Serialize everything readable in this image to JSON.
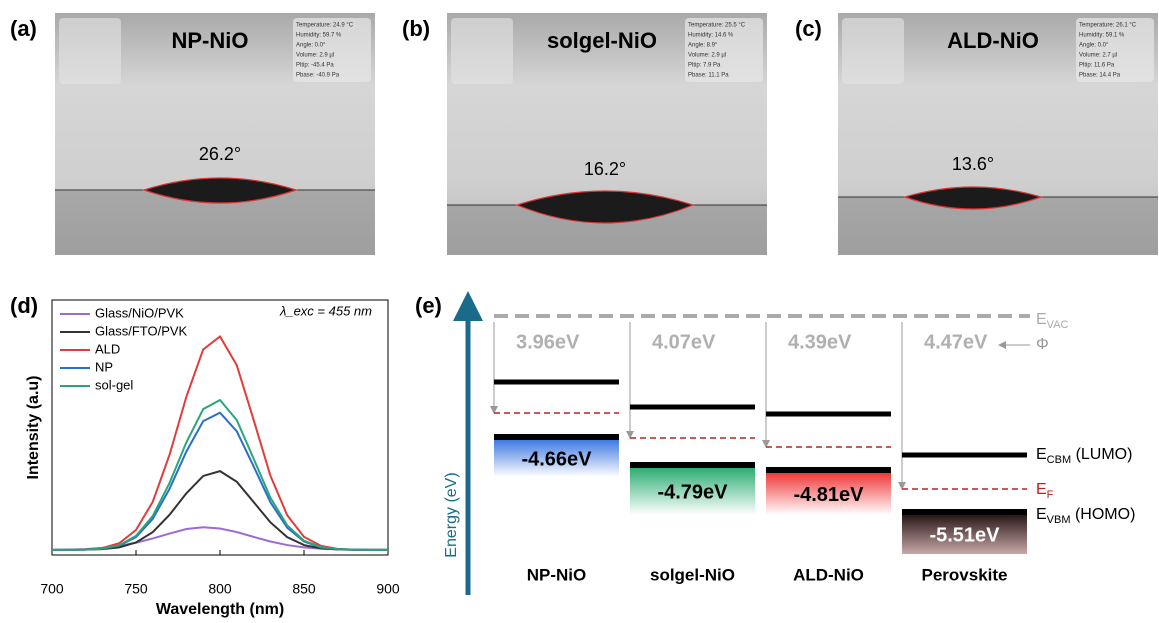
{
  "panels": [
    {
      "label": "(a)",
      "title": "NP-NiO",
      "angle": "26.2°",
      "info": [
        "Temperature: 24.9 °C",
        "Humidity: 59.7 %",
        "Angle: 0.0°",
        "Volume: 2.9 µl",
        "Pltip: -45.4 Pa",
        "Pbase: -40.9 Pa"
      ]
    },
    {
      "label": "(b)",
      "title": "solgel-NiO",
      "angle": "16.2°",
      "info": [
        "Temperature: 25.5 °C",
        "Humidity: 14.6 %",
        "Angle: 8.9°",
        "Volume: 2.9 µl",
        "Pltip: 7.9 Pa",
        "Pbase: 11.1 Pa"
      ]
    },
    {
      "label": "(c)",
      "title": "ALD-NiO",
      "angle": "13.6°",
      "info": [
        "Temperature: 26.1 °C",
        "Humidity: 59.1 %",
        "Angle: 0.0°",
        "Volume: 2.7 µl",
        "Pltip: 11.6 Pa",
        "Pbase: 14.4 Pa"
      ]
    }
  ],
  "chart_data": {
    "type": "line",
    "label": "(d)",
    "annotation": "λ_exc = 455 nm",
    "x_label": "Wavelength (nm)",
    "y_label": "Intensity (a.u)",
    "x": [
      700,
      710,
      720,
      730,
      740,
      750,
      760,
      770,
      780,
      790,
      800,
      810,
      820,
      830,
      840,
      850,
      860,
      870,
      880,
      890,
      900
    ],
    "xlim": [
      700,
      900
    ],
    "xticks": [
      700,
      750,
      800,
      850,
      900
    ],
    "ylim": [
      0,
      100
    ],
    "series": [
      {
        "name": "Glass/NiO/PVK",
        "color": "#9b6bd3",
        "values": [
          2,
          2.1,
          2.3,
          2.8,
          3.6,
          4.8,
          6.5,
          8.4,
          10.2,
          10.9,
          10.4,
          9,
          7.1,
          5.3,
          3.9,
          3,
          2.5,
          2.2,
          2.1,
          2,
          2
        ]
      },
      {
        "name": "Glass/FTO/PVK",
        "color": "#333333",
        "values": [
          2,
          2,
          2.1,
          2.3,
          3,
          4.9,
          9,
          15.8,
          24.2,
          31,
          32.9,
          28.7,
          20.8,
          12.8,
          7,
          3.9,
          2.6,
          2.2,
          2,
          2,
          2
        ]
      },
      {
        "name": "ALD",
        "color": "#e03c3c",
        "values": [
          2,
          2,
          2.2,
          2.7,
          4.6,
          9.8,
          20.9,
          39.4,
          62.1,
          80.6,
          85.7,
          74.4,
          53,
          31.1,
          15.6,
          7.1,
          3.6,
          2.4,
          2.1,
          2,
          2
        ]
      },
      {
        "name": "NP",
        "color": "#2a6fc9",
        "values": [
          2,
          2,
          2.1,
          2.5,
          3.7,
          7,
          14.2,
          26,
          40.6,
          52.5,
          55.8,
          48.5,
          34.8,
          20.7,
          10.7,
          5.3,
          3,
          2.3,
          2.1,
          2,
          2
        ]
      },
      {
        "name": "sol-gel",
        "color": "#2aa57a",
        "values": [
          2,
          2,
          2.1,
          2.5,
          3.8,
          7.5,
          15.3,
          28.3,
          44.2,
          57.2,
          60.8,
          52.9,
          37.8,
          22.5,
          11.6,
          5.6,
          3.1,
          2.3,
          2.1,
          2,
          2
        ]
      }
    ]
  },
  "energy_diagram": {
    "label": "(e)",
    "axis_label": "Energy (eV)",
    "columns": [
      {
        "name": "NP-NiO",
        "work_function": "3.96eV",
        "vbm": "-4.66eV"
      },
      {
        "name": "solgel-NiO",
        "work_function": "4.07eV",
        "vbm": "-4.79eV"
      },
      {
        "name": "ALD-NiO",
        "work_function": "4.39eV",
        "vbm": "-4.81eV"
      },
      {
        "name": "Perovskite",
        "work_function": "4.47eV",
        "vbm": "-5.51eV"
      }
    ],
    "levels": {
      "vac": {
        "main": "E",
        "sub": "VAC"
      },
      "phi": "Φ",
      "cbm": {
        "main": "E",
        "sub": "CBM",
        "rest": " (LUMO)"
      },
      "fermi": {
        "main": "E",
        "sub": "F"
      },
      "vbm": {
        "main": "E",
        "sub": "VBM",
        "rest": " (HOMO)"
      }
    }
  }
}
